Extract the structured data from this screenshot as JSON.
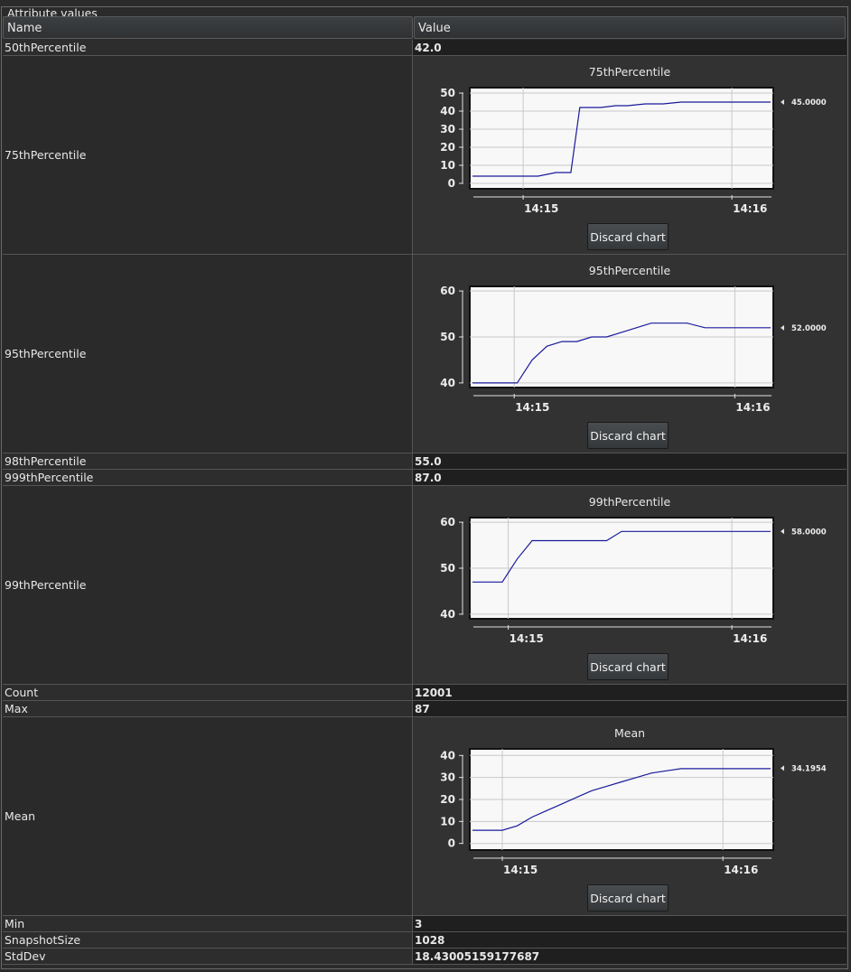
{
  "panel": {
    "title": "Attribute values"
  },
  "columns": {
    "name": "Name",
    "value": "Value"
  },
  "rows": [
    {
      "id": "r50",
      "name": "50thPercentile",
      "value": "42.0"
    },
    {
      "id": "r75",
      "name": "75thPercentile",
      "chart": 0
    },
    {
      "id": "r95",
      "name": "95thPercentile",
      "chart": 1
    },
    {
      "id": "r98",
      "name": "98thPercentile",
      "value": "55.0"
    },
    {
      "id": "r999",
      "name": "999thPercentile",
      "value": "87.0"
    },
    {
      "id": "r99",
      "name": "99thPercentile",
      "chart": 2
    },
    {
      "id": "rcount",
      "name": "Count",
      "value": "12001"
    },
    {
      "id": "rmax",
      "name": "Max",
      "value": "87"
    },
    {
      "id": "rmean",
      "name": "Mean",
      "chart": 3
    },
    {
      "id": "rmin",
      "name": "Min",
      "value": "3"
    },
    {
      "id": "rsnap",
      "name": "SnapshotSize",
      "value": "1028"
    },
    {
      "id": "rstd",
      "name": "StdDev",
      "value": "18.43005159177687"
    }
  ],
  "discard_label": "Discard chart",
  "colors": {
    "line": "#1a1a9c",
    "plot_bg": "#f8f8f8"
  },
  "chart_data": [
    {
      "type": "line",
      "title": "75thPercentile",
      "yticks": [
        0,
        10,
        20,
        30,
        40,
        50
      ],
      "ylim": [
        -3,
        53
      ],
      "xlim": [
        0,
        100
      ],
      "xticks": [
        {
          "label": "14:15",
          "x": 17
        },
        {
          "label": "14:16",
          "x": 87
        }
      ],
      "x": [
        0,
        10,
        19,
        22,
        28,
        33,
        36,
        43,
        48,
        52,
        58,
        64,
        70,
        80,
        90,
        100
      ],
      "y": [
        4,
        4,
        4,
        4,
        6,
        6,
        42,
        42,
        43,
        43,
        44,
        44,
        45,
        45,
        45,
        45
      ],
      "current": "45.0000",
      "current_value": 45
    },
    {
      "type": "line",
      "title": "95thPercentile",
      "yticks": [
        40,
        50,
        60
      ],
      "ylim": [
        39,
        61
      ],
      "xlim": [
        0,
        100
      ],
      "xticks": [
        {
          "label": "14:15",
          "x": 14
        },
        {
          "label": "14:16",
          "x": 88
        }
      ],
      "x": [
        0,
        10,
        15,
        20,
        25,
        30,
        35,
        40,
        45,
        50,
        55,
        60,
        66,
        72,
        78,
        85,
        100
      ],
      "y": [
        40,
        40,
        40,
        45,
        48,
        49,
        49,
        50,
        50,
        51,
        52,
        53,
        53,
        53,
        52,
        52,
        52
      ],
      "current": "52.0000",
      "current_value": 52
    },
    {
      "type": "line",
      "title": "99thPercentile",
      "yticks": [
        40,
        50,
        60
      ],
      "ylim": [
        39,
        61
      ],
      "xlim": [
        0,
        100
      ],
      "xticks": [
        {
          "label": "14:15",
          "x": 12
        },
        {
          "label": "14:16",
          "x": 87
        }
      ],
      "x": [
        0,
        10,
        15,
        20,
        25,
        30,
        40,
        45,
        50,
        55,
        60,
        70,
        80,
        90,
        100
      ],
      "y": [
        47,
        47,
        52,
        56,
        56,
        56,
        56,
        56,
        58,
        58,
        58,
        58,
        58,
        58,
        58
      ],
      "current": "58.0000",
      "current_value": 58
    },
    {
      "type": "line",
      "title": "Mean",
      "yticks": [
        0,
        10,
        20,
        30,
        40
      ],
      "ylim": [
        -3,
        43
      ],
      "xlim": [
        0,
        100
      ],
      "xticks": [
        {
          "label": "14:15",
          "x": 10
        },
        {
          "label": "14:16",
          "x": 84
        }
      ],
      "x": [
        0,
        10,
        15,
        20,
        25,
        30,
        35,
        40,
        45,
        50,
        55,
        60,
        65,
        70,
        75,
        80,
        85,
        90,
        95,
        100
      ],
      "y": [
        6,
        6,
        8,
        12,
        15,
        18,
        21,
        24,
        26,
        28,
        30,
        32,
        33,
        34,
        34,
        34,
        34,
        34,
        34,
        34
      ],
      "current": "34.1954",
      "current_value": 34.1954
    }
  ]
}
